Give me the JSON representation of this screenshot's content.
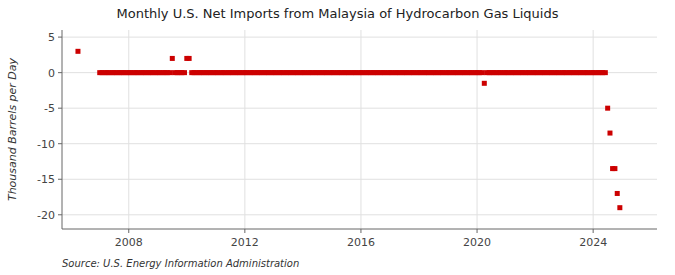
{
  "chart_data": {
    "type": "scatter",
    "title": "Monthly U.S. Net Imports from Malaysia of Hydrocarbon Gas Liquids",
    "ylabel": "Thousand Barrels per Day",
    "source": "Source: U.S. Energy Information Administration",
    "color": "#cc0000",
    "marker": "square",
    "grid": true,
    "ylim": [
      -22,
      6
    ],
    "yticks": [
      -20,
      -15,
      -10,
      -5,
      0,
      5
    ],
    "xlim": [
      2005.7,
      2026.2
    ],
    "xticks": [
      2008,
      2012,
      2016,
      2020,
      2024
    ],
    "x": [
      2006.25,
      2007.0,
      2007.08,
      2007.17,
      2007.25,
      2007.33,
      2007.42,
      2007.5,
      2007.58,
      2007.67,
      2007.75,
      2007.83,
      2007.92,
      2008.0,
      2008.08,
      2008.17,
      2008.25,
      2008.33,
      2008.42,
      2008.5,
      2008.58,
      2008.67,
      2008.75,
      2008.83,
      2008.92,
      2009.0,
      2009.08,
      2009.17,
      2009.25,
      2009.33,
      2009.42,
      2009.5,
      2009.58,
      2009.67,
      2009.75,
      2009.83,
      2009.92,
      2010.0,
      2010.08,
      2010.17,
      2010.25,
      2010.33,
      2010.42,
      2010.5,
      2010.58,
      2010.67,
      2010.75,
      2010.83,
      2010.92,
      2011.0,
      2011.08,
      2011.17,
      2011.25,
      2011.33,
      2011.42,
      2011.5,
      2011.58,
      2011.67,
      2011.75,
      2011.83,
      2011.92,
      2012.0,
      2012.08,
      2012.17,
      2012.25,
      2012.33,
      2012.42,
      2012.5,
      2012.58,
      2012.67,
      2012.75,
      2012.83,
      2012.92,
      2013.0,
      2013.08,
      2013.17,
      2013.25,
      2013.33,
      2013.42,
      2013.5,
      2013.58,
      2013.67,
      2013.75,
      2013.83,
      2013.92,
      2014.0,
      2014.08,
      2014.17,
      2014.25,
      2014.33,
      2014.42,
      2014.5,
      2014.58,
      2014.67,
      2014.75,
      2014.83,
      2014.92,
      2015.0,
      2015.08,
      2015.17,
      2015.25,
      2015.33,
      2015.42,
      2015.5,
      2015.58,
      2015.67,
      2015.75,
      2015.83,
      2015.92,
      2016.0,
      2016.08,
      2016.17,
      2016.25,
      2016.33,
      2016.42,
      2016.5,
      2016.58,
      2016.67,
      2016.75,
      2016.83,
      2016.92,
      2017.0,
      2017.08,
      2017.17,
      2017.25,
      2017.33,
      2017.42,
      2017.5,
      2017.58,
      2017.67,
      2017.75,
      2017.83,
      2017.92,
      2018.0,
      2018.08,
      2018.17,
      2018.25,
      2018.33,
      2018.42,
      2018.5,
      2018.58,
      2018.67,
      2018.75,
      2018.83,
      2018.92,
      2019.0,
      2019.08,
      2019.17,
      2019.25,
      2019.33,
      2019.42,
      2019.5,
      2019.58,
      2019.67,
      2019.75,
      2019.83,
      2019.92,
      2020.0,
      2020.08,
      2020.17,
      2020.25,
      2020.33,
      2020.42,
      2020.5,
      2020.58,
      2020.67,
      2020.75,
      2020.83,
      2020.92,
      2021.0,
      2021.08,
      2021.17,
      2021.25,
      2021.33,
      2021.42,
      2021.5,
      2021.58,
      2021.67,
      2021.75,
      2021.83,
      2021.92,
      2022.0,
      2022.08,
      2022.17,
      2022.25,
      2022.33,
      2022.42,
      2022.5,
      2022.58,
      2022.67,
      2022.75,
      2022.83,
      2022.92,
      2023.0,
      2023.08,
      2023.17,
      2023.25,
      2023.33,
      2023.42,
      2023.5,
      2023.58,
      2023.67,
      2023.75,
      2023.83,
      2023.92,
      2024.0,
      2024.08,
      2024.17,
      2024.25,
      2024.33,
      2024.42,
      2024.5,
      2024.58,
      2024.67,
      2024.75,
      2024.83,
      2024.92
    ],
    "values": [
      3.0,
      0.0,
      0.0,
      0.0,
      0.0,
      0.0,
      0.0,
      0.0,
      0.0,
      0.0,
      0.0,
      0.0,
      0.0,
      0.0,
      0.0,
      0.0,
      0.0,
      0.0,
      0.0,
      0.0,
      0.0,
      0.0,
      0.0,
      0.0,
      0.0,
      0.0,
      0.0,
      0.0,
      0.0,
      0.0,
      0.0,
      2.0,
      0.0,
      0.0,
      0.0,
      0.0,
      0.0,
      2.0,
      2.0,
      0.0,
      0.0,
      0.0,
      0.0,
      0.0,
      0.0,
      0.0,
      0.0,
      0.0,
      0.0,
      0.0,
      0.0,
      0.0,
      0.0,
      0.0,
      0.0,
      0.0,
      0.0,
      0.0,
      0.0,
      0.0,
      0.0,
      0.0,
      0.0,
      0.0,
      0.0,
      0.0,
      0.0,
      0.0,
      0.0,
      0.0,
      0.0,
      0.0,
      0.0,
      0.0,
      0.0,
      0.0,
      0.0,
      0.0,
      0.0,
      0.0,
      0.0,
      0.0,
      0.0,
      0.0,
      0.0,
      0.0,
      0.0,
      0.0,
      0.0,
      0.0,
      0.0,
      0.0,
      0.0,
      0.0,
      0.0,
      0.0,
      0.0,
      0.0,
      0.0,
      0.0,
      0.0,
      0.0,
      0.0,
      0.0,
      0.0,
      0.0,
      0.0,
      0.0,
      0.0,
      0.0,
      0.0,
      0.0,
      0.0,
      0.0,
      0.0,
      0.0,
      0.0,
      0.0,
      0.0,
      0.0,
      0.0,
      0.0,
      0.0,
      0.0,
      0.0,
      0.0,
      0.0,
      0.0,
      0.0,
      0.0,
      0.0,
      0.0,
      0.0,
      0.0,
      0.0,
      0.0,
      0.0,
      0.0,
      0.0,
      0.0,
      0.0,
      0.0,
      0.0,
      0.0,
      0.0,
      0.0,
      0.0,
      0.0,
      0.0,
      0.0,
      0.0,
      0.0,
      0.0,
      0.0,
      0.0,
      0.0,
      0.0,
      0.0,
      0.0,
      0.0,
      -1.5,
      0.0,
      0.0,
      0.0,
      0.0,
      0.0,
      0.0,
      0.0,
      0.0,
      0.0,
      0.0,
      0.0,
      0.0,
      0.0,
      0.0,
      0.0,
      0.0,
      0.0,
      0.0,
      0.0,
      0.0,
      0.0,
      0.0,
      0.0,
      0.0,
      0.0,
      0.0,
      0.0,
      0.0,
      0.0,
      0.0,
      0.0,
      0.0,
      0.0,
      0.0,
      0.0,
      0.0,
      0.0,
      0.0,
      0.0,
      0.0,
      0.0,
      0.0,
      0.0,
      0.0,
      0.0,
      0.0,
      0.0,
      0.0,
      0.0,
      0.0,
      -5.0,
      -8.5,
      -13.5,
      -13.5,
      -17.0,
      -19.0
    ]
  }
}
